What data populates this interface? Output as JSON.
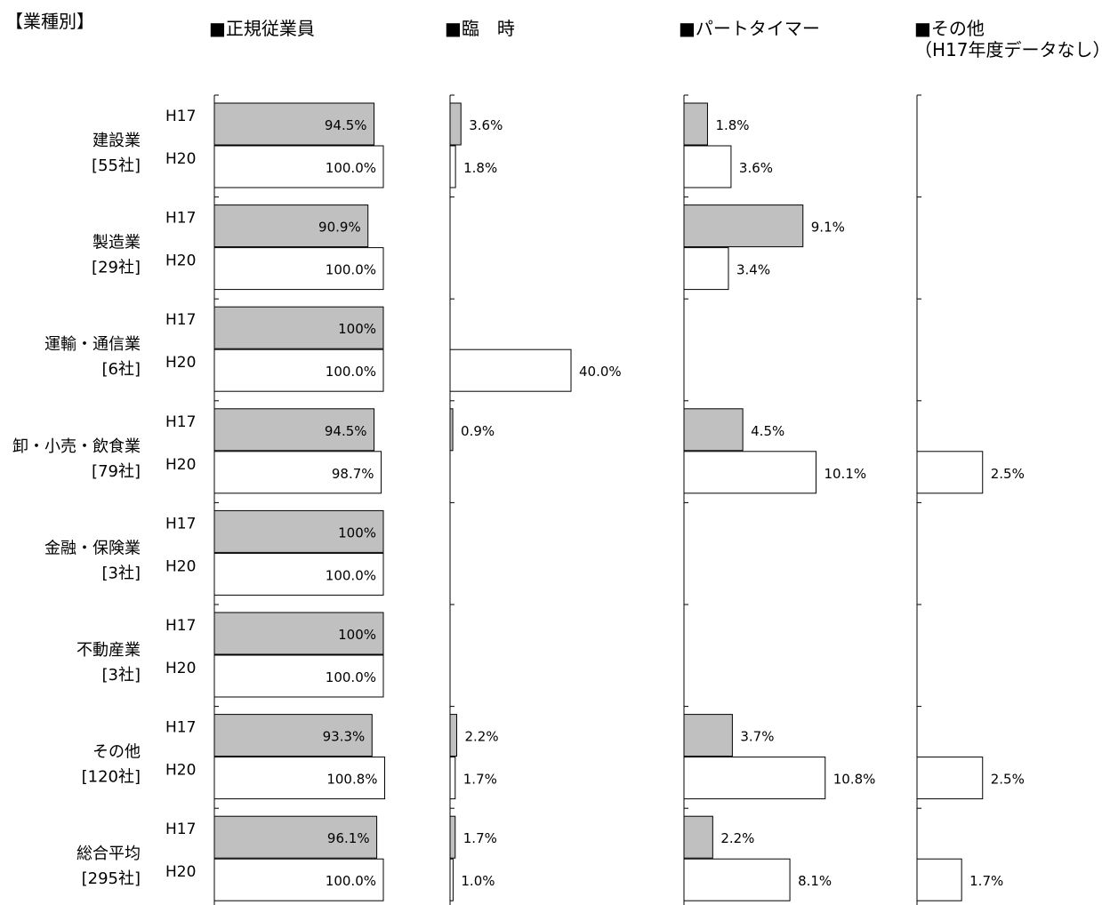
{
  "section_title": "【業種別】",
  "chart_data": {
    "type": "bar",
    "orientation": "horizontal",
    "title": "【業種別】",
    "years": [
      "H17",
      "H20"
    ],
    "year_colors": {
      "H17": "#c0c0c0",
      "H20": "#ffffff"
    },
    "categories": [
      {
        "name": "建設業",
        "count": "[55社]"
      },
      {
        "name": "製造業",
        "count": "[29社]"
      },
      {
        "name": "運輸・通信業",
        "count": "[6社]"
      },
      {
        "name": "卸・小売・飲食業",
        "count": "[79社]"
      },
      {
        "name": "金融・保険業",
        "count": "[3社]"
      },
      {
        "name": "不動産業",
        "count": "[3社]"
      },
      {
        "name": "その他",
        "count": "[120社]"
      },
      {
        "name": "総合平均",
        "count": "[295社]"
      }
    ],
    "panels": [
      {
        "title": "■正規従業員",
        "subtitle": "",
        "values": {
          "H17": [
            94.5,
            90.9,
            100,
            94.5,
            100,
            100,
            93.3,
            96.1
          ],
          "H20": [
            100.0,
            100.0,
            100.0,
            98.7,
            100.0,
            100.0,
            100.8,
            100.0
          ]
        },
        "labels": {
          "H17": [
            "94.5%",
            "90.9%",
            "100%",
            "94.5%",
            "100%",
            "100%",
            "93.3%",
            "96.1%"
          ],
          "H20": [
            "100.0%",
            "100.0%",
            "100.0%",
            "98.7%",
            "100.0%",
            "100.0%",
            "100.8%",
            "100.0%"
          ]
        }
      },
      {
        "title": "■臨　時",
        "subtitle": "",
        "values": {
          "H17": [
            3.6,
            null,
            null,
            0.9,
            null,
            null,
            2.2,
            1.7
          ],
          "H20": [
            1.8,
            null,
            40.0,
            null,
            null,
            null,
            1.7,
            1.0
          ]
        },
        "labels": {
          "H17": [
            "3.6%",
            "",
            "",
            "0.9%",
            "",
            "",
            "2.2%",
            "1.7%"
          ],
          "H20": [
            "1.8%",
            "",
            "40.0%",
            "",
            "",
            "",
            "1.7%",
            "1.0%"
          ]
        }
      },
      {
        "title": "■パートタイマー",
        "subtitle": "",
        "values": {
          "H17": [
            1.8,
            9.1,
            null,
            4.5,
            null,
            null,
            3.7,
            2.2
          ],
          "H20": [
            3.6,
            3.4,
            null,
            10.1,
            null,
            null,
            10.8,
            8.1
          ]
        },
        "labels": {
          "H17": [
            "1.8%",
            "9.1%",
            "",
            "4.5%",
            "",
            "",
            "3.7%",
            "2.2%"
          ],
          "H20": [
            "3.6%",
            "3.4%",
            "",
            "10.1%",
            "",
            "",
            "10.8%",
            "8.1%"
          ]
        }
      },
      {
        "title": "■その他",
        "subtitle": "（H17年度データなし）",
        "values": {
          "H17": [
            null,
            null,
            null,
            null,
            null,
            null,
            null,
            null
          ],
          "H20": [
            null,
            null,
            null,
            2.5,
            null,
            null,
            2.5,
            1.7
          ]
        },
        "labels": {
          "H17": [
            "",
            "",
            "",
            "",
            "",
            "",
            "",
            ""
          ],
          "H20": [
            "",
            "",
            "",
            "2.5%",
            "",
            "",
            "2.5%",
            "1.7%"
          ]
        }
      }
    ]
  }
}
